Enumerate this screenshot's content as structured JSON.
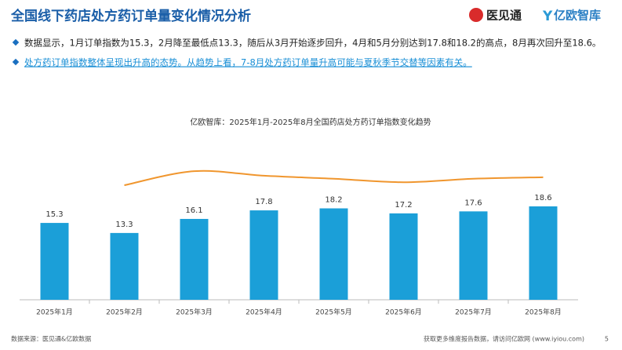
{
  "header": {
    "title": "全国线下药店处方药订单量变化情况分析",
    "logos": [
      "医见通",
      "亿欧智库"
    ]
  },
  "bullets": [
    "数据显示，1月订单指数为15.3，2月降至最低点13.3，随后从3月开始逐步回升，4月和5月分别达到17.8和18.2的高点，8月再次回升至18.6。",
    "处方药订单指数整体呈现出升高的态势。从趋势上看，7-8月处方药订单量升高可能与夏秋季节交替等因素有关。"
  ],
  "chart_data": {
    "type": "bar",
    "title": "亿欧智库：2025年1月-2025年8月全国药店处方药订单指数变化趋势",
    "categories": [
      "2025年1月",
      "2025年2月",
      "2025年3月",
      "2025年4月",
      "2025年5月",
      "2025年6月",
      "2025年7月",
      "2025年8月"
    ],
    "values": [
      15.3,
      13.3,
      16.1,
      17.8,
      18.2,
      17.2,
      17.6,
      18.6
    ],
    "color": "#1b9fd8",
    "trend": {
      "color": "#f0962e",
      "values": [
        null,
        22.8,
        25.6,
        24.7,
        24.1,
        23.4,
        24.1,
        24.4
      ]
    },
    "ylim": [
      0,
      30
    ]
  },
  "footer": {
    "source": "数据来源：医见通&亿欧数据",
    "note": "获取更多维度报告数据，请访问亿欧网 (www.iyiou.com)",
    "page": "5"
  }
}
